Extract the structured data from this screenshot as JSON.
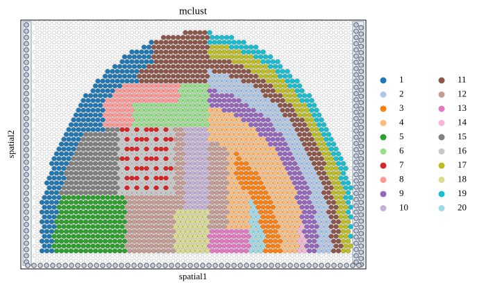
{
  "chart_data": {
    "type": "scatter",
    "title": "mclust",
    "x_label": "spatial1",
    "y_label": "spatial2",
    "series": [
      {
        "name": "1",
        "color": "#1f77b4"
      },
      {
        "name": "2",
        "color": "#aec7e8"
      },
      {
        "name": "3",
        "color": "#ff7f0e"
      },
      {
        "name": "4",
        "color": "#ffbb78"
      },
      {
        "name": "5",
        "color": "#2ca02c"
      },
      {
        "name": "6",
        "color": "#98df8a"
      },
      {
        "name": "7",
        "color": "#d62728"
      },
      {
        "name": "8",
        "color": "#ff9896"
      },
      {
        "name": "9",
        "color": "#9467bd"
      },
      {
        "name": "10",
        "color": "#c5b0d5"
      },
      {
        "name": "11",
        "color": "#8c564b"
      },
      {
        "name": "12",
        "color": "#c49c94"
      },
      {
        "name": "13",
        "color": "#e377c2"
      },
      {
        "name": "14",
        "color": "#f7b6d2"
      },
      {
        "name": "15",
        "color": "#7f7f7f"
      },
      {
        "name": "16",
        "color": "#c7c7c7"
      },
      {
        "name": "17",
        "color": "#bcbd22"
      },
      {
        "name": "18",
        "color": "#dbdb8d"
      },
      {
        "name": "19",
        "color": "#17becf"
      },
      {
        "name": "20",
        "color": "#9edae5"
      }
    ],
    "legend": "right"
  }
}
